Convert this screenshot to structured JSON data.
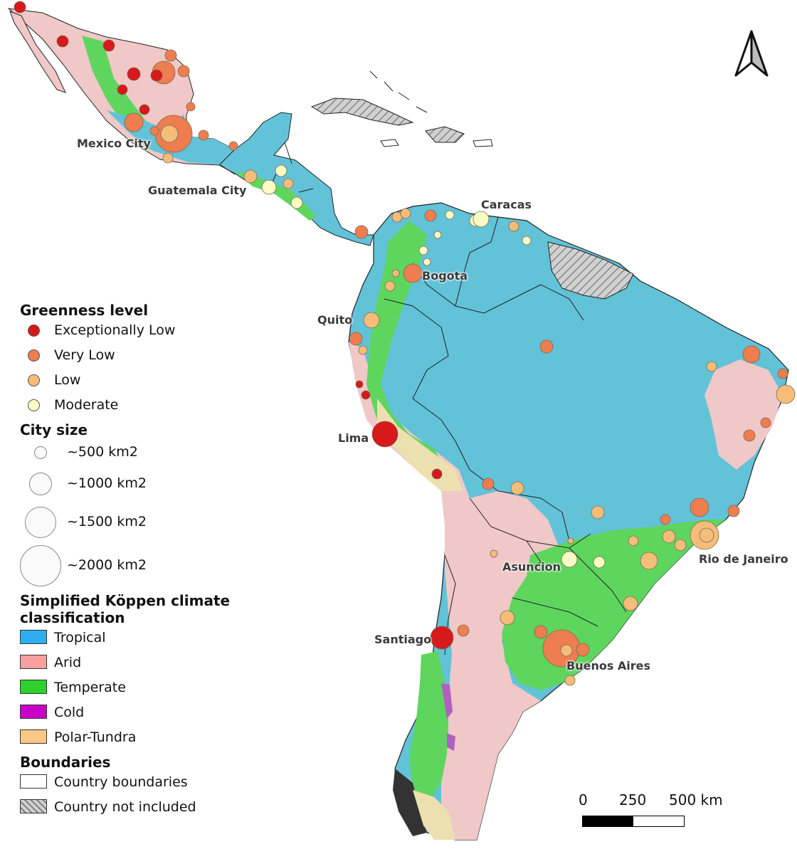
{
  "legend": {
    "greenness": {
      "title": "Greenness level",
      "items": [
        {
          "label": "Exceptionally Low",
          "color": "#d7191c"
        },
        {
          "label": "Very Low",
          "color": "#ee7d4f"
        },
        {
          "label": "Low",
          "color": "#f6bd79"
        },
        {
          "label": "Moderate",
          "color": "#fefcc4"
        }
      ]
    },
    "city_size": {
      "title": "City size",
      "items": [
        {
          "label": "~500 km2",
          "area_km2": 500
        },
        {
          "label": "~1000 km2",
          "area_km2": 1000
        },
        {
          "label": "~1500 km2",
          "area_km2": 1500
        },
        {
          "label": "~2000 km2",
          "area_km2": 2000
        }
      ]
    },
    "climate": {
      "title_line1": "Simplified Köppen climate",
      "title_line2": "classification",
      "items": [
        {
          "label": "Tropical",
          "color": "#2eaef0"
        },
        {
          "label": "Arid",
          "color": "#f8a0a0"
        },
        {
          "label": "Temperate",
          "color": "#2ed02e"
        },
        {
          "label": "Cold",
          "color": "#c800c8"
        },
        {
          "label": "Polar-Tundra",
          "color": "#f8c888"
        }
      ]
    },
    "boundaries": {
      "title": "Boundaries",
      "items": [
        {
          "label": "Country boundaries",
          "style": "outline"
        },
        {
          "label": "Country not included",
          "style": "hatched"
        }
      ]
    }
  },
  "map_colors": {
    "tropical": "#62c2d8",
    "arid": "#f0c8c8",
    "temperate": "#5ed65e",
    "polar": "#ede0b0",
    "cold": "#b060c0",
    "not_included": "#c8c8c8",
    "boundary": "#222222"
  },
  "scale_bar": {
    "labels": [
      "0",
      "250",
      "500 km"
    ]
  },
  "north_arrow": {
    "icon": "north-arrow-icon"
  },
  "city_labels": [
    {
      "name": "Mexico City"
    },
    {
      "name": "Guatemala City"
    },
    {
      "name": "Caracas"
    },
    {
      "name": "Bogota"
    },
    {
      "name": "Quito"
    },
    {
      "name": "Lima"
    },
    {
      "name": "Asuncion"
    },
    {
      "name": "Rio de Janeiro"
    },
    {
      "name": "Santiago"
    },
    {
      "name": "Buenos Aires"
    }
  ]
}
